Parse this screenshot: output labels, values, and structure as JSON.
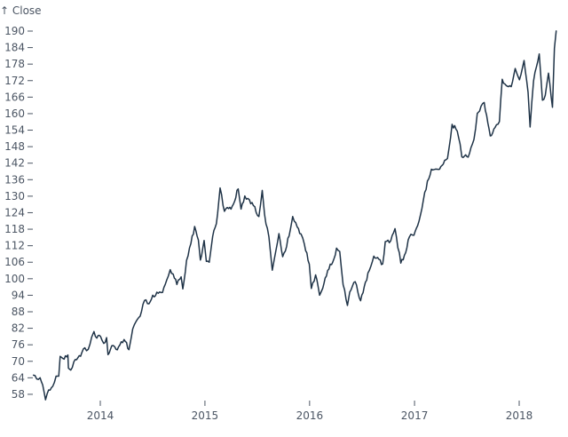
{
  "chart_data": {
    "type": "line",
    "ylabel": "↑ Close",
    "xlabel": "",
    "ylim": [
      55.79,
      190.04
    ],
    "yticks": [
      58,
      64,
      70,
      76,
      82,
      88,
      94,
      100,
      106,
      112,
      118,
      124,
      130,
      136,
      142,
      148,
      154,
      160,
      166,
      172,
      178,
      184,
      190
    ],
    "xticks": [
      "2014",
      "2015",
      "2016",
      "2017",
      "2018"
    ],
    "grid": false,
    "line_color": "#1f3347",
    "x": [
      "2013-05-13",
      "2013-05-24",
      "2013-06-05",
      "2013-06-14",
      "2013-06-24",
      "2013-07-05",
      "2013-07-19",
      "2013-07-31",
      "2013-08-09",
      "2013-08-14",
      "2013-08-28",
      "2013-09-06",
      "2013-09-10",
      "2013-09-12",
      "2013-09-20",
      "2013-10-01",
      "2013-10-15",
      "2013-10-29",
      "2013-11-08",
      "2013-11-20",
      "2013-12-02",
      "2013-12-10",
      "2013-12-20",
      "2014-01-02",
      "2014-01-13",
      "2014-01-23",
      "2014-01-28",
      "2014-02-10",
      "2014-02-25",
      "2014-03-10",
      "2014-03-25",
      "2014-04-11",
      "2014-04-24",
      "2014-05-06",
      "2014-05-20",
      "2014-06-04",
      "2014-06-20",
      "2014-07-03",
      "2014-07-22",
      "2014-08-06",
      "2014-08-26",
      "2014-09-02",
      "2014-09-12",
      "2014-09-25",
      "2014-10-10",
      "2014-10-16",
      "2014-10-29",
      "2014-11-13",
      "2014-11-26",
      "2014-12-09",
      "2014-12-16",
      "2014-12-29",
      "2015-01-06",
      "2015-01-16",
      "2015-01-28",
      "2015-02-10",
      "2015-02-23",
      "2015-03-10",
      "2015-03-20",
      "2015-04-02",
      "2015-04-27",
      "2015-05-07",
      "2015-05-20",
      "2015-06-05",
      "2015-06-19",
      "2015-07-08",
      "2015-07-20",
      "2015-07-28",
      "2015-08-12",
      "2015-08-24",
      "2015-09-01",
      "2015-09-16",
      "2015-09-29",
      "2015-10-13",
      "2015-11-03",
      "2015-11-19",
      "2015-12-02",
      "2015-12-14",
      "2015-12-31",
      "2016-01-07",
      "2016-01-22",
      "2016-02-05",
      "2016-02-16",
      "2016-03-04",
      "2016-03-22",
      "2016-04-04",
      "2016-04-15",
      "2016-04-27",
      "2016-05-12",
      "2016-05-20",
      "2016-06-08",
      "2016-06-27",
      "2016-07-14",
      "2016-07-27",
      "2016-08-12",
      "2016-09-12",
      "2016-09-21",
      "2016-10-05",
      "2016-10-25",
      "2016-11-14",
      "2016-12-01",
      "2016-12-14",
      "2016-12-30",
      "2017-01-12",
      "2017-02-01",
      "2017-02-15",
      "2017-03-01",
      "2017-03-21",
      "2017-04-11",
      "2017-04-26",
      "2017-05-12",
      "2017-05-30",
      "2017-06-09",
      "2017-06-15",
      "2017-07-07",
      "2017-07-27",
      "2017-08-08",
      "2017-08-16",
      "2017-09-01",
      "2017-09-22",
      "2017-10-09",
      "2017-10-24",
      "2017-11-03",
      "2017-11-20",
      "2017-12-04",
      "2017-12-18",
      "2018-01-02",
      "2018-01-18",
      "2018-02-01",
      "2018-02-08",
      "2018-02-20",
      "2018-03-12",
      "2018-03-23",
      "2018-04-02",
      "2018-04-13",
      "2018-04-27",
      "2018-05-04",
      "2018-05-10"
    ],
    "y": [
      64.96,
      63.6,
      64.0,
      61.4,
      56.0,
      59.6,
      60.9,
      64.6,
      64.6,
      71.8,
      70.8,
      71.6,
      72.3,
      67.5,
      66.8,
      69.9,
      71.3,
      73.2,
      74.9,
      74.3,
      78.8,
      80.8,
      78.4,
      79.0,
      76.5,
      78.6,
      72.4,
      75.6,
      74.3,
      75.9,
      77.9,
      74.2,
      81.7,
      84.5,
      86.4,
      92.1,
      90.9,
      94.0,
      94.7,
      95.0,
      100.9,
      103.3,
      101.7,
      97.9,
      100.7,
      96.3,
      106.7,
      112.8,
      119.0,
      114.1,
      106.8,
      113.9,
      106.3,
      106.0,
      115.3,
      120.0,
      133.0,
      124.5,
      125.9,
      125.3,
      132.65,
      125.3,
      130.1,
      128.7,
      126.6,
      122.6,
      132.1,
      123.4,
      115.2,
      103.1,
      107.7,
      116.4,
      108.0,
      111.8,
      122.6,
      118.8,
      116.3,
      112.5,
      105.3,
      96.45,
      101.4,
      94.0,
      96.6,
      103.0,
      106.1,
      111.1,
      109.9,
      97.8,
      90.3,
      95.2,
      98.9,
      92.0,
      98.8,
      102.9,
      108.2,
      105.4,
      113.5,
      113.1,
      118.2,
      105.7,
      109.5,
      115.2,
      115.8,
      119.3,
      128.7,
      135.5,
      139.8,
      139.8,
      141.6,
      143.7,
      156.1,
      153.7,
      149.0,
      144.3,
      144.2,
      150.6,
      160.1,
      160.95,
      164.05,
      151.9,
      155.0,
      157.1,
      172.5,
      170.0,
      169.8,
      176.4,
      172.3,
      179.3,
      167.8,
      155.15,
      171.9,
      181.7,
      164.9,
      166.7,
      174.7,
      162.3,
      183.8,
      190.04
    ]
  }
}
